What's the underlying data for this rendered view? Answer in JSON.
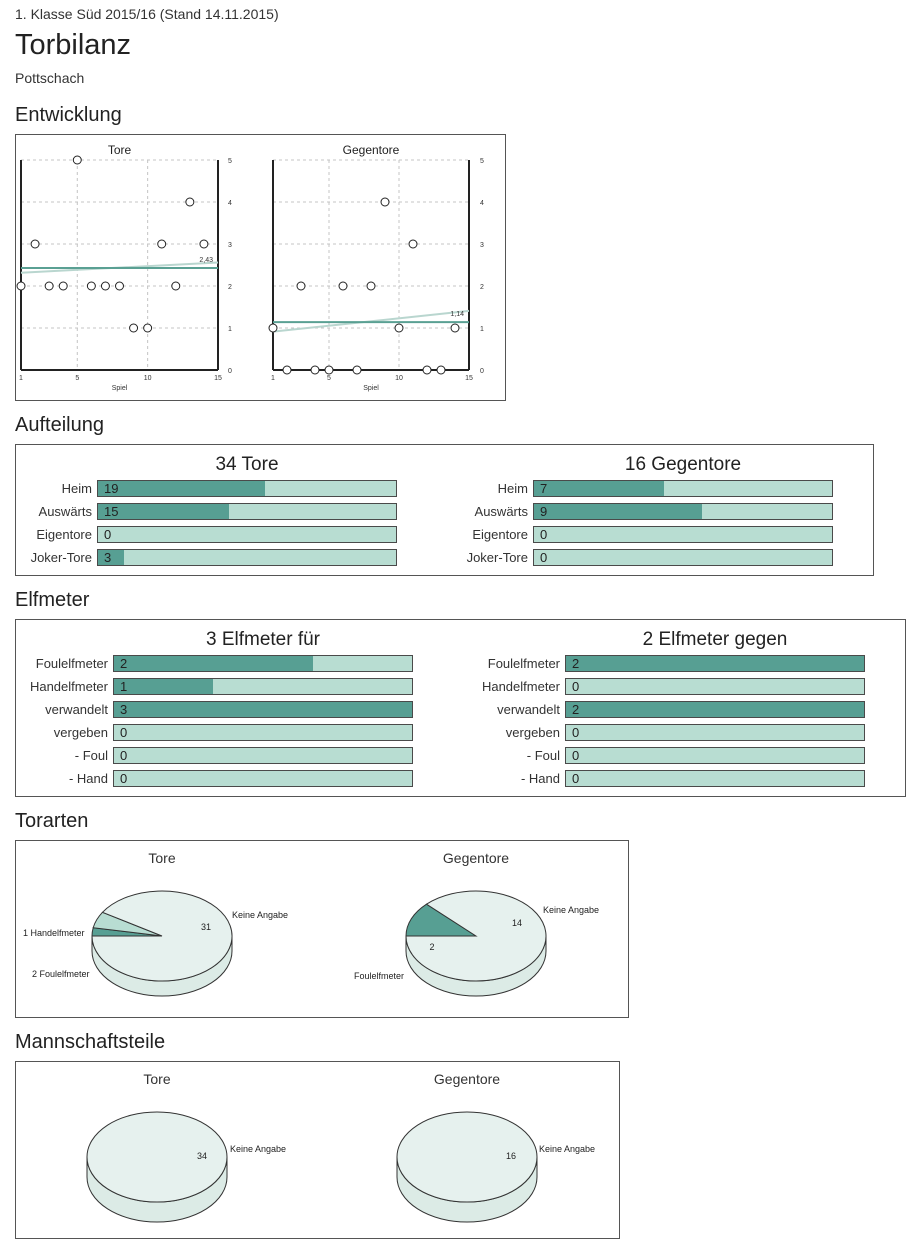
{
  "header": {
    "league": "1. Klasse Süd 2015/16 (Stand 14.11.2015)",
    "title": "Torbilanz",
    "team": "Pottschach"
  },
  "sections": {
    "entwicklung": "Entwicklung",
    "aufteilung": "Aufteilung",
    "elfmeter": "Elfmeter",
    "torarten": "Torarten",
    "mannschaftsteile": "Mannschaftsteile"
  },
  "colors": {
    "bar_fill": "#579f93",
    "bar_track": "#b8ddd2",
    "pie_light": "#e6f1ee",
    "trend_line": "#5aa093",
    "regression_line": "#b9d6cf"
  },
  "chart_data": [
    {
      "type": "scatter",
      "title": "Tore",
      "xlabel": "Spiel",
      "xlim": [
        1,
        15
      ],
      "ylim": [
        0,
        5
      ],
      "xticks": [
        "1",
        "5",
        "10",
        "15"
      ],
      "yticks": [
        "0",
        "1",
        "2",
        "3",
        "4",
        "5"
      ],
      "grid": true,
      "x": [
        1,
        2,
        3,
        4,
        5,
        6,
        7,
        8,
        9,
        10,
        11,
        12,
        13,
        14
      ],
      "y": [
        2,
        3,
        2,
        2,
        5,
        2,
        2,
        2,
        1,
        1,
        3,
        2,
        4,
        3
      ],
      "average": 2.43,
      "average_label": "2,43"
    },
    {
      "type": "scatter",
      "title": "Gegentore",
      "xlabel": "Spiel",
      "xlim": [
        1,
        15
      ],
      "ylim": [
        0,
        5
      ],
      "xticks": [
        "1",
        "5",
        "10",
        "15"
      ],
      "yticks": [
        "0",
        "1",
        "2",
        "3",
        "4",
        "5"
      ],
      "grid": true,
      "x": [
        1,
        2,
        3,
        4,
        5,
        6,
        7,
        8,
        9,
        10,
        11,
        12,
        13,
        14
      ],
      "y": [
        1,
        0,
        2,
        0,
        0,
        2,
        0,
        2,
        4,
        1,
        3,
        0,
        0,
        1
      ],
      "average": 1.14,
      "average_label": "1,14"
    },
    {
      "type": "bar",
      "title": "34 Tore",
      "categories": [
        "Heim",
        "Auswärts",
        "Eigentore",
        "Joker-Tore"
      ],
      "values": [
        19,
        15,
        0,
        3
      ],
      "labels": [
        "19",
        "15",
        "0",
        "3"
      ],
      "max": 34
    },
    {
      "type": "bar",
      "title": "16 Gegentore",
      "categories": [
        "Heim",
        "Auswärts",
        "Eigentore",
        "Joker-Tore"
      ],
      "values": [
        7,
        9,
        0,
        0
      ],
      "labels": [
        "7",
        "9",
        "0",
        "0"
      ],
      "max": 16
    },
    {
      "type": "bar",
      "title": "3 Elfmeter für",
      "categories": [
        "Foulelfmeter",
        "Handelfmeter",
        "verwandelt",
        "vergeben",
        "- Foul",
        "- Hand"
      ],
      "values": [
        2,
        1,
        3,
        0,
        0,
        0
      ],
      "labels": [
        "2",
        "1",
        "3",
        "0",
        "0",
        "0"
      ],
      "max": 3
    },
    {
      "type": "bar",
      "title": "2 Elfmeter gegen",
      "categories": [
        "Foulelfmeter",
        "Handelfmeter",
        "verwandelt",
        "vergeben",
        "- Foul",
        "- Hand"
      ],
      "values": [
        2,
        0,
        2,
        0,
        0,
        0
      ],
      "labels": [
        "2",
        "0",
        "2",
        "0",
        "0",
        "0"
      ],
      "max": 2
    },
    {
      "type": "pie",
      "title": "Tore",
      "slices": [
        {
          "label": "Keine Angabe",
          "value": 31,
          "value_label": "31"
        },
        {
          "label": "1 Handelfmeter",
          "value": 1,
          "value_label": ""
        },
        {
          "label": "2 Foulelfmeter",
          "value": 2,
          "value_label": ""
        }
      ]
    },
    {
      "type": "pie",
      "title": "Gegentore",
      "slices": [
        {
          "label": "Keine Angabe",
          "value": 14,
          "value_label": "14"
        },
        {
          "label": "Foulelfmeter",
          "value": 2,
          "value_label": "2"
        }
      ]
    },
    {
      "type": "pie",
      "title": "Tore",
      "slices": [
        {
          "label": "Keine Angabe",
          "value": 34,
          "value_label": "34"
        }
      ]
    },
    {
      "type": "pie",
      "title": "Gegentore",
      "slices": [
        {
          "label": "Keine Angabe",
          "value": 16,
          "value_label": "16"
        }
      ]
    }
  ]
}
